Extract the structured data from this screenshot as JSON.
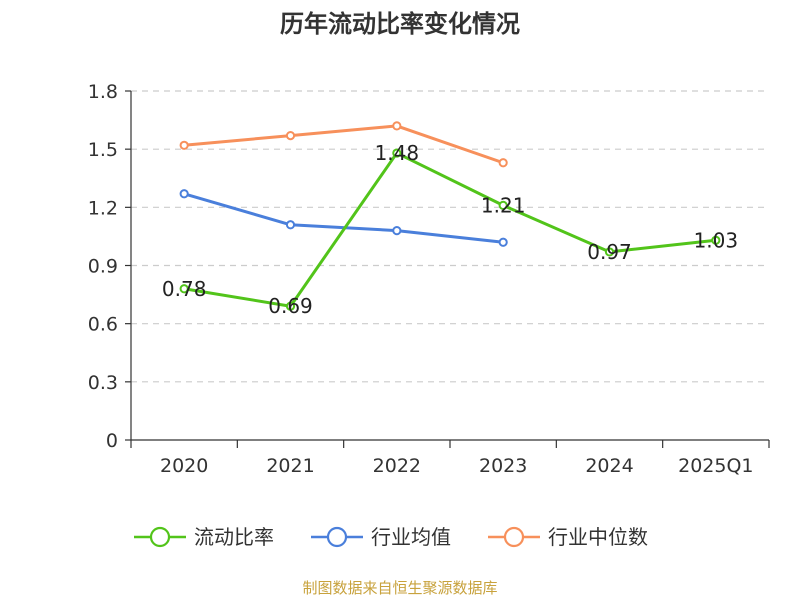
{
  "chart_data": {
    "type": "line",
    "title": "历年流动比率变化情况",
    "categories": [
      "2020",
      "2021",
      "2022",
      "2023",
      "2024",
      "2025Q1"
    ],
    "ylim": [
      0,
      1.8
    ],
    "yticks": [
      "0",
      "0.3",
      "0.6",
      "0.9",
      "1.2",
      "1.5",
      "1.8"
    ],
    "grid": true,
    "legend_position": "bottom",
    "series": [
      {
        "name": "流动比率",
        "color": "#52c41a",
        "values": [
          0.78,
          0.69,
          1.48,
          1.21,
          0.97,
          1.03
        ],
        "labels": [
          "0.78",
          "0.69",
          "1.48",
          "1.21",
          "0.97",
          "1.03"
        ]
      },
      {
        "name": "行业均值",
        "color": "#4a7fdb",
        "values": [
          1.27,
          1.11,
          1.08,
          1.02,
          null,
          null
        ]
      },
      {
        "name": "行业中位数",
        "color": "#f7905b",
        "values": [
          1.52,
          1.57,
          1.62,
          1.43,
          null,
          null
        ]
      }
    ]
  },
  "source": {
    "text": "制图数据来自恒生聚源数据库",
    "color": "#c8a23c"
  }
}
